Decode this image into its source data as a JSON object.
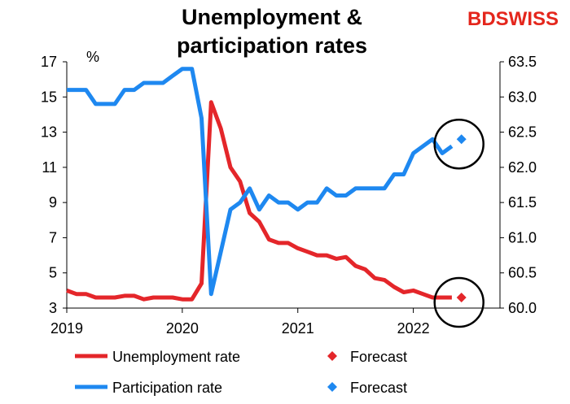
{
  "brand": {
    "logo_text_a": "BD",
    "logo_text_b": "SWISS",
    "logo_color": "#e4261c"
  },
  "chart_data": {
    "type": "line",
    "title": "Unemployment & participation rates",
    "title_lines": [
      "Unemployment &",
      "participation rates"
    ],
    "left_axis": {
      "unit_label": "%",
      "range": [
        3,
        17
      ],
      "ticks": [
        3,
        5,
        7,
        9,
        11,
        13,
        15,
        17
      ]
    },
    "right_axis": {
      "range": [
        60.0,
        63.5
      ],
      "ticks": [
        "60.0",
        "60.5",
        "61.0",
        "61.5",
        "62.0",
        "62.5",
        "63.0",
        "63.5"
      ]
    },
    "x_axis": {
      "start": 2019.0,
      "end": 2022.75,
      "tick_labels": [
        "2019",
        "2020",
        "2021",
        "2022"
      ],
      "tick_values": [
        2019,
        2020,
        2021,
        2022
      ]
    },
    "grid": false,
    "legend": {
      "placement": "bottom",
      "entries": [
        {
          "label": "Unemployment rate",
          "marker": "line",
          "color": "#e4262a"
        },
        {
          "label": "Forecast",
          "marker": "diamond",
          "color": "#e4262a"
        },
        {
          "label": "Participation rate",
          "marker": "line",
          "color": "#1e88f0"
        },
        {
          "label": "Forecast",
          "marker": "diamond",
          "color": "#1e88f0"
        }
      ]
    },
    "series": [
      {
        "name": "Unemployment rate",
        "axis": "left",
        "color": "#e4262a",
        "points": [
          [
            "2019-01",
            4.0
          ],
          [
            "2019-02",
            3.8
          ],
          [
            "2019-03",
            3.8
          ],
          [
            "2019-04",
            3.6
          ],
          [
            "2019-05",
            3.6
          ],
          [
            "2019-06",
            3.6
          ],
          [
            "2019-07",
            3.7
          ],
          [
            "2019-08",
            3.7
          ],
          [
            "2019-09",
            3.5
          ],
          [
            "2019-10",
            3.6
          ],
          [
            "2019-11",
            3.6
          ],
          [
            "2019-12",
            3.6
          ],
          [
            "2020-01",
            3.5
          ],
          [
            "2020-02",
            3.5
          ],
          [
            "2020-03",
            4.4
          ],
          [
            "2020-04",
            14.7
          ],
          [
            "2020-05",
            13.2
          ],
          [
            "2020-06",
            11.0
          ],
          [
            "2020-07",
            10.2
          ],
          [
            "2020-08",
            8.4
          ],
          [
            "2020-09",
            7.9
          ],
          [
            "2020-10",
            6.9
          ],
          [
            "2020-11",
            6.7
          ],
          [
            "2020-12",
            6.7
          ],
          [
            "2021-01",
            6.4
          ],
          [
            "2021-02",
            6.2
          ],
          [
            "2021-03",
            6.0
          ],
          [
            "2021-04",
            6.0
          ],
          [
            "2021-05",
            5.8
          ],
          [
            "2021-06",
            5.9
          ],
          [
            "2021-07",
            5.4
          ],
          [
            "2021-08",
            5.2
          ],
          [
            "2021-09",
            4.7
          ],
          [
            "2021-10",
            4.6
          ],
          [
            "2021-11",
            4.2
          ],
          [
            "2021-12",
            3.9
          ],
          [
            "2022-01",
            4.0
          ],
          [
            "2022-02",
            3.8
          ],
          [
            "2022-03",
            3.6
          ],
          [
            "2022-04",
            3.6
          ],
          [
            "2022-05",
            3.6
          ]
        ]
      },
      {
        "name": "Forecast",
        "axis": "left",
        "color": "#e4262a",
        "marker": "diamond",
        "points": [
          [
            "2022-06",
            3.6
          ]
        ]
      },
      {
        "name": "Participation rate",
        "axis": "right",
        "color": "#1e88f0",
        "points": [
          [
            "2019-01",
            63.1
          ],
          [
            "2019-02",
            63.1
          ],
          [
            "2019-03",
            63.1
          ],
          [
            "2019-04",
            62.9
          ],
          [
            "2019-05",
            62.9
          ],
          [
            "2019-06",
            62.9
          ],
          [
            "2019-07",
            63.1
          ],
          [
            "2019-08",
            63.1
          ],
          [
            "2019-09",
            63.2
          ],
          [
            "2019-10",
            63.2
          ],
          [
            "2019-11",
            63.2
          ],
          [
            "2019-12",
            63.3
          ],
          [
            "2020-01",
            63.4
          ],
          [
            "2020-02",
            63.4
          ],
          [
            "2020-03",
            62.7
          ],
          [
            "2020-04",
            60.2
          ],
          [
            "2020-05",
            60.8
          ],
          [
            "2020-06",
            61.4
          ],
          [
            "2020-07",
            61.5
          ],
          [
            "2020-08",
            61.7
          ],
          [
            "2020-09",
            61.4
          ],
          [
            "2020-10",
            61.6
          ],
          [
            "2020-11",
            61.5
          ],
          [
            "2020-12",
            61.5
          ],
          [
            "2021-01",
            61.4
          ],
          [
            "2021-02",
            61.5
          ],
          [
            "2021-03",
            61.5
          ],
          [
            "2021-04",
            61.7
          ],
          [
            "2021-05",
            61.6
          ],
          [
            "2021-06",
            61.6
          ],
          [
            "2021-07",
            61.7
          ],
          [
            "2021-08",
            61.7
          ],
          [
            "2021-09",
            61.7
          ],
          [
            "2021-10",
            61.7
          ],
          [
            "2021-11",
            61.9
          ],
          [
            "2021-12",
            61.9
          ],
          [
            "2022-01",
            62.2
          ],
          [
            "2022-02",
            62.3
          ],
          [
            "2022-03",
            62.4
          ],
          [
            "2022-04",
            62.2
          ],
          [
            "2022-05",
            62.3
          ]
        ]
      },
      {
        "name": "Forecast",
        "axis": "right",
        "color": "#1e88f0",
        "marker": "diamond",
        "points": [
          [
            "2022-06",
            62.4
          ]
        ]
      }
    ],
    "annotations": [
      {
        "type": "circle",
        "around": "participation forecast"
      },
      {
        "type": "circle",
        "around": "unemployment forecast"
      }
    ]
  }
}
